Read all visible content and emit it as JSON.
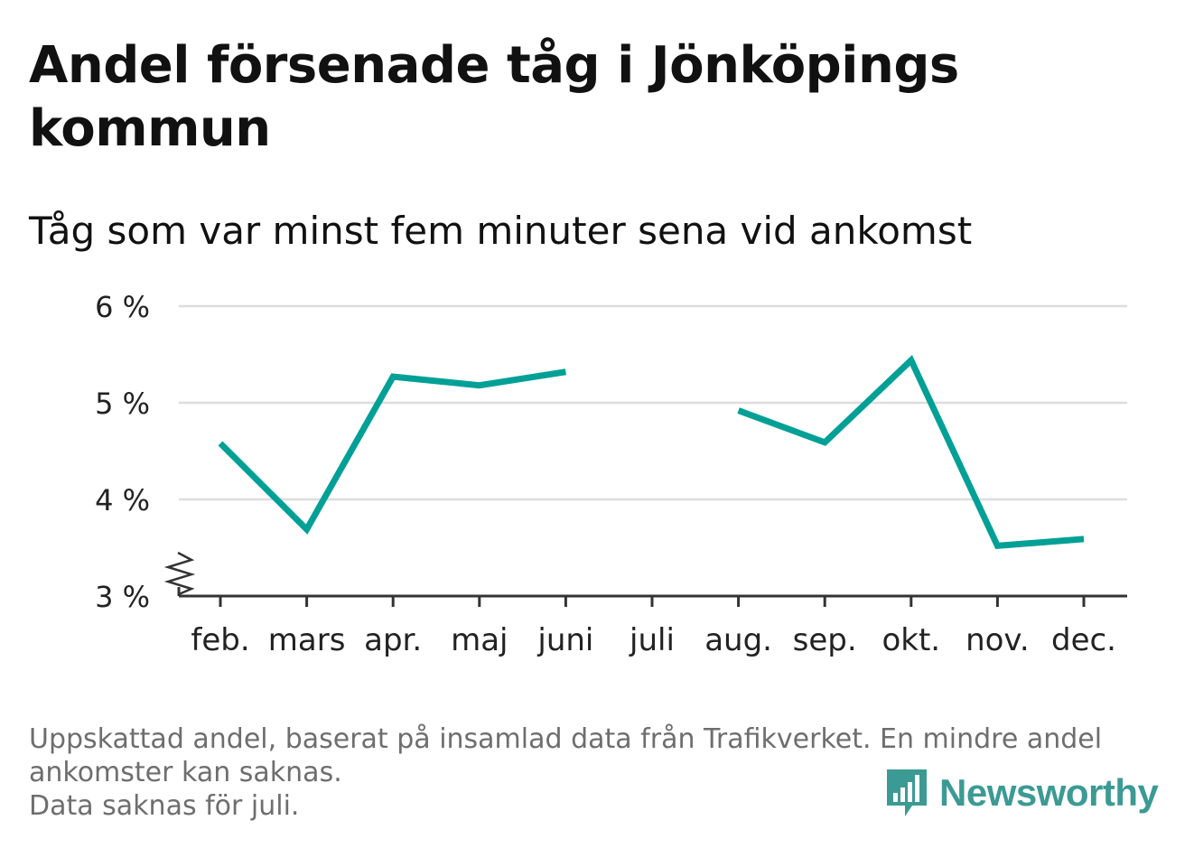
{
  "title": "Andel försenade tåg i Jönköpings kommun",
  "subtitle": "Tåg som var minst fem minuter sena vid ankomst",
  "footer": {
    "line1": "Uppskattad andel, baserat på insamlad data från Trafikverket. En mindre andel",
    "line2": "ankomster kan saknas.",
    "line3": "Data saknas för juli."
  },
  "logo": {
    "text": "Newsworthy",
    "icon": "newsworthy-logo-icon"
  },
  "colors": {
    "line": "#00a096",
    "grid": "#dddddd",
    "axis": "#333333",
    "text": "#111111",
    "footer": "#6e6e6e",
    "logo": "#3c9a94"
  },
  "chart_data": {
    "type": "line",
    "categories": [
      "feb.",
      "mars",
      "apr.",
      "maj",
      "juni",
      "juli",
      "aug.",
      "sep.",
      "okt.",
      "nov.",
      "dec."
    ],
    "series": [
      {
        "values": [
          4.58,
          3.69,
          5.27,
          5.18,
          5.32,
          null,
          4.92,
          4.59,
          5.44,
          3.52,
          3.59
        ]
      }
    ],
    "yticks": [
      3,
      4,
      5,
      6
    ],
    "ytick_labels": [
      "3 %",
      "4 %",
      "5 %",
      "6 %"
    ],
    "ylim": [
      3,
      6
    ],
    "y_axis_break": true,
    "grid": true,
    "xlabel": "",
    "ylabel": ""
  }
}
